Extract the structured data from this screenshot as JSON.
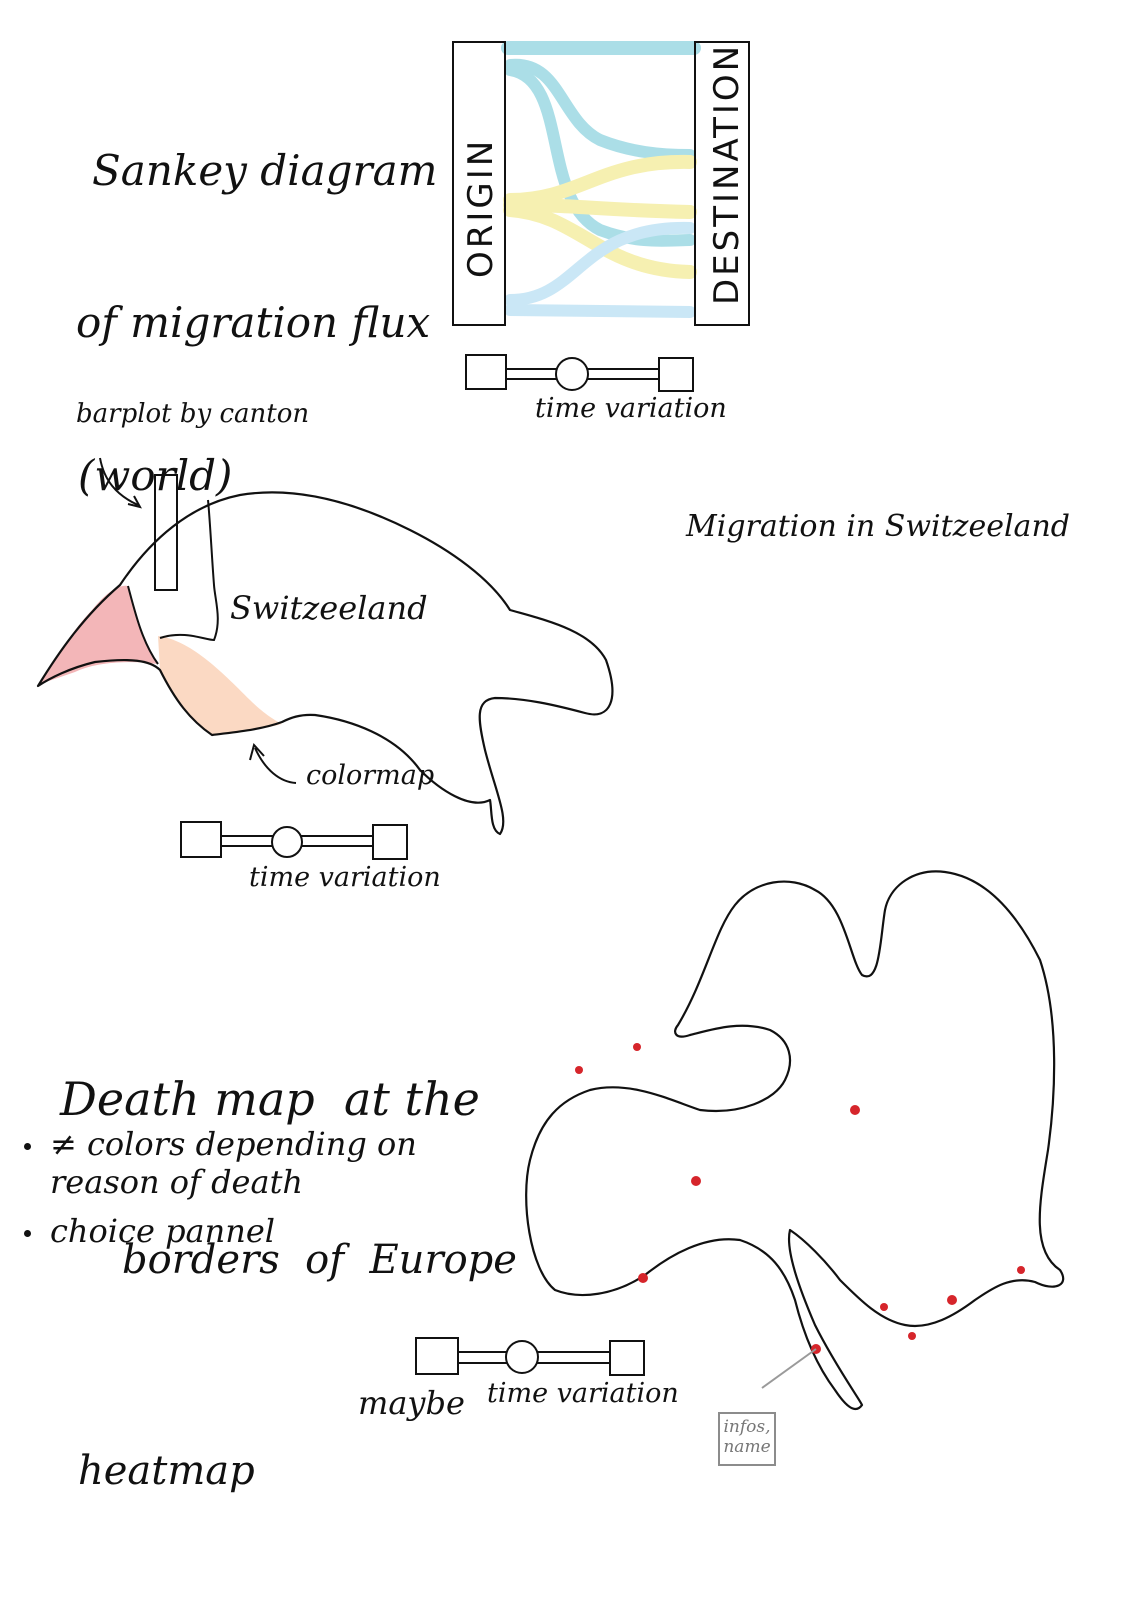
{
  "sankey": {
    "title_lines": [
      "Sankey diagram",
      "of migration flux",
      "(world)"
    ],
    "origin_label": "ORIGIN",
    "destination_label": "DESTINATION",
    "time_label": "time variation"
  },
  "switzerland": {
    "barplot_label": "barplot by canton",
    "country_label": "Switzeeland",
    "colormap_label": "colormap",
    "section_title": "Migration in Switzeeland",
    "time_label": "time variation"
  },
  "death_map": {
    "title_lines": [
      "Death map  at the",
      "borders  of  Europe"
    ],
    "bullets": [
      "≠ colors depending on\nreason of death",
      "choice pannel"
    ],
    "time_prefix": "maybe",
    "time_label": "time variation",
    "info_label": "infos,\nname",
    "heatmap_label": "heatmap"
  },
  "colors": {
    "flow_blue": "#8fd4e0",
    "flow_yellow": "#f3eb98",
    "flow_lightblue": "#b9dff3",
    "canton_red": "#f3b6b8",
    "canton_peach": "#fbd9c3",
    "death_dot": "#d6252b"
  }
}
